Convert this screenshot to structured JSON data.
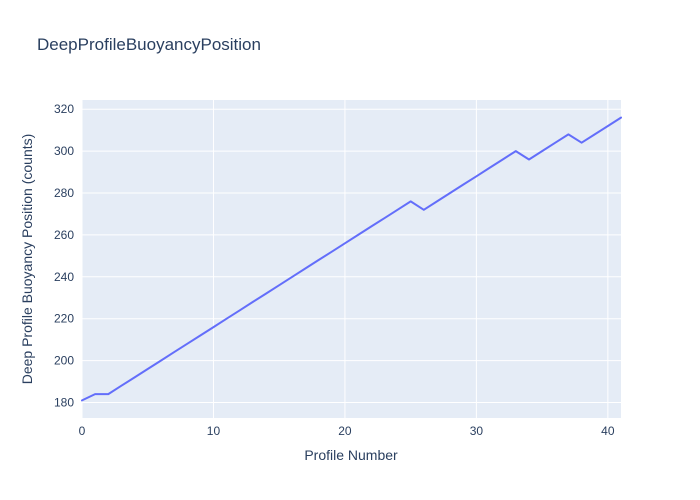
{
  "chart_data": {
    "type": "line",
    "title": "DeepProfileBuoyancyPosition",
    "xlabel": "Profile Number",
    "ylabel": "Deep Profile Buoyancy Position (counts)",
    "x": [
      0,
      1,
      2,
      3,
      4,
      5,
      6,
      7,
      8,
      9,
      10,
      11,
      12,
      13,
      14,
      15,
      16,
      17,
      18,
      19,
      20,
      21,
      22,
      23,
      24,
      25,
      26,
      27,
      28,
      29,
      30,
      31,
      32,
      33,
      34,
      35,
      36,
      37,
      38,
      39,
      40,
      41
    ],
    "values": [
      181,
      184,
      184,
      188,
      192,
      196,
      200,
      204,
      208,
      212,
      216,
      220,
      224,
      228,
      232,
      236,
      240,
      244,
      248,
      252,
      256,
      260,
      264,
      268,
      272,
      276,
      272,
      276,
      280,
      284,
      288,
      292,
      296,
      300,
      296,
      300,
      304,
      308,
      304,
      308,
      312,
      316
    ],
    "x_ticks": [
      0,
      10,
      20,
      30,
      40
    ],
    "y_ticks": [
      180,
      200,
      220,
      240,
      260,
      280,
      300,
      320
    ],
    "xlim": [
      0,
      41
    ],
    "ylim": [
      172.6,
      324.4
    ],
    "grid": true,
    "legend": false,
    "line_color": "#636efa",
    "plot_bg_color": "#e5ecf6",
    "grid_color": "#ffffff",
    "text_color": "#2a3f5f",
    "page_bg_color": "#ffffff"
  }
}
